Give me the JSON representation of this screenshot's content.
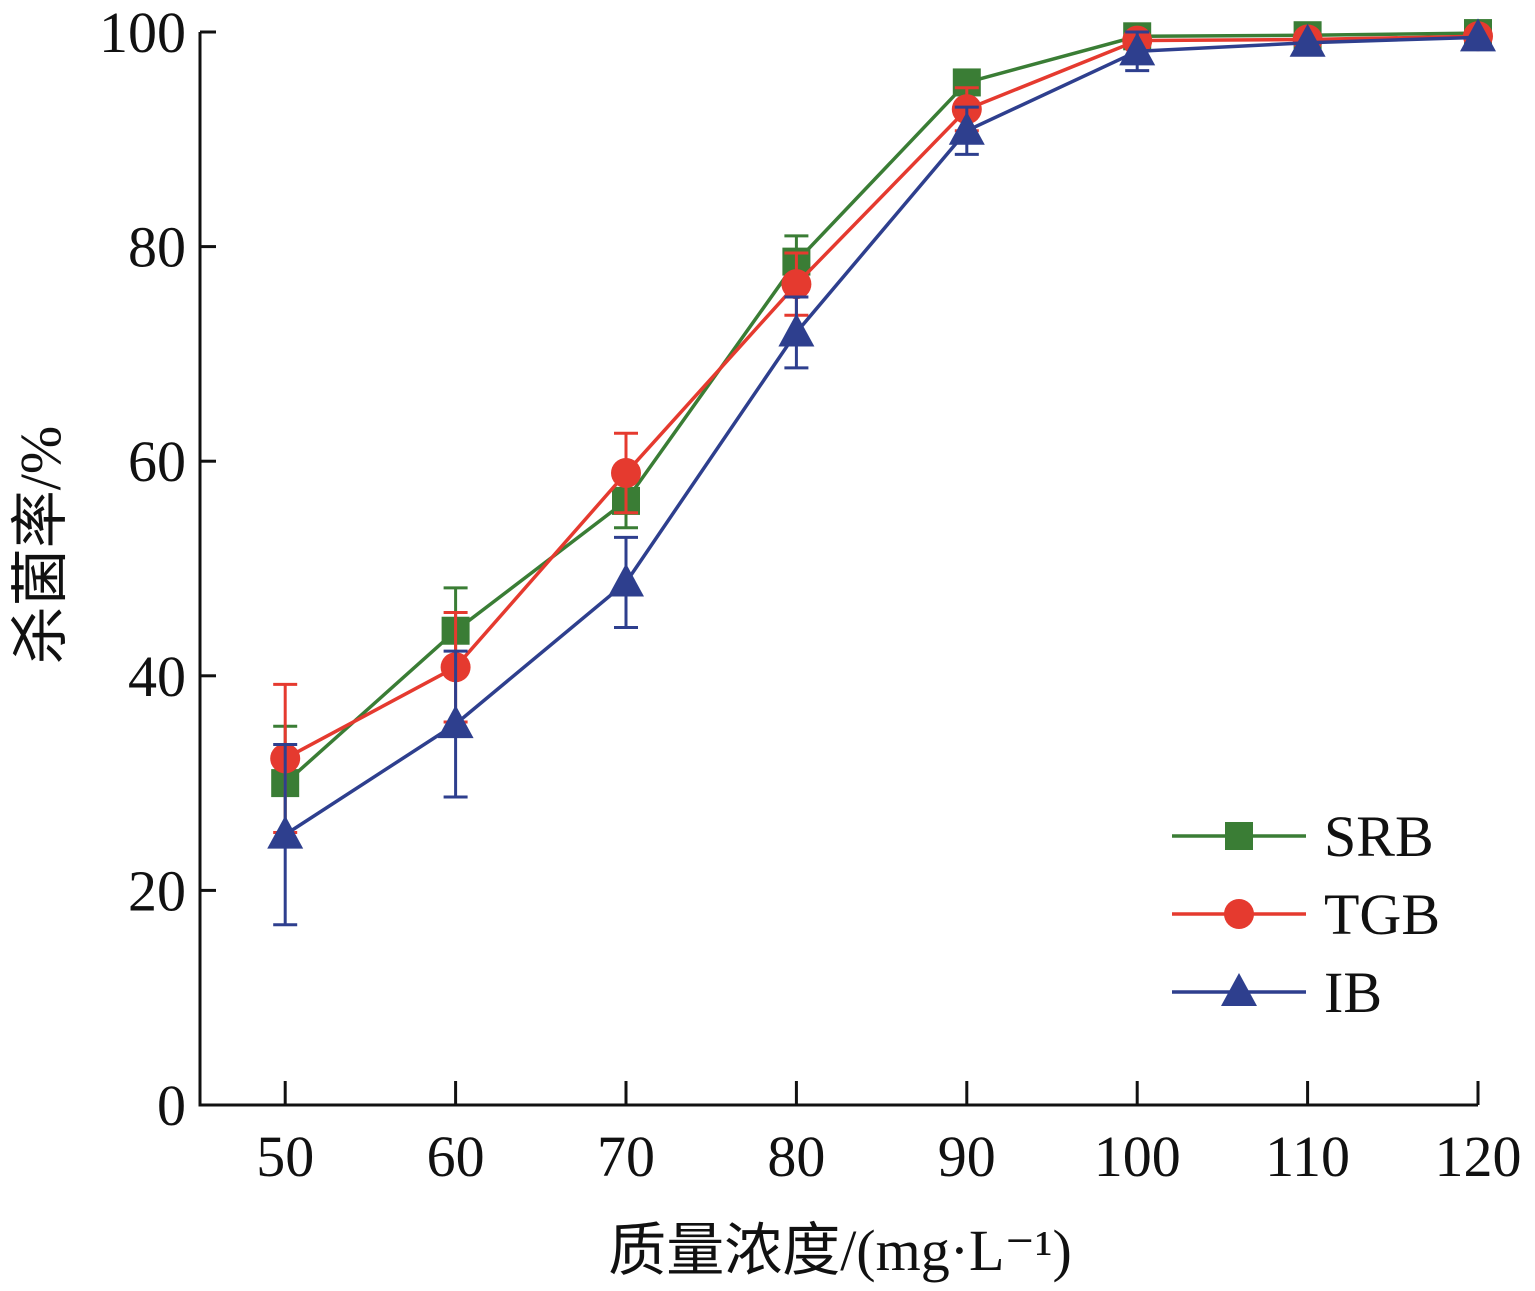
{
  "chart_data": {
    "type": "line",
    "title": "",
    "xlabel": "质量浓度/(mg·L⁻¹)",
    "ylabel": "杀菌率/%",
    "x": [
      50,
      60,
      70,
      80,
      90,
      100,
      110,
      120
    ],
    "xlim": [
      45,
      120
    ],
    "ylim": [
      0,
      100
    ],
    "xticks": [
      50,
      60,
      70,
      80,
      90,
      100,
      110,
      120
    ],
    "yticks": [
      0,
      20,
      40,
      60,
      80,
      100
    ],
    "grid": false,
    "legend_position": "bottom-right",
    "series": [
      {
        "name": "SRB",
        "color": "#3a7d35",
        "marker": "square",
        "values": [
          30.0,
          44.2,
          56.3,
          78.6,
          95.3,
          99.6,
          99.7,
          99.9
        ],
        "errors": [
          5.3,
          4.0,
          2.5,
          2.4,
          0.0,
          0.0,
          0.0,
          0.0
        ]
      },
      {
        "name": "TGB",
        "color": "#e53a2f",
        "marker": "circle",
        "values": [
          32.3,
          40.8,
          58.9,
          76.5,
          92.8,
          99.2,
          99.3,
          99.6
        ],
        "errors": [
          6.9,
          5.1,
          3.7,
          2.9,
          2.0,
          0.6,
          0.0,
          0.0
        ]
      },
      {
        "name": "IB",
        "color": "#2e3f8e",
        "marker": "triangle",
        "values": [
          25.2,
          35.5,
          48.7,
          72.0,
          90.8,
          98.2,
          99.0,
          99.5
        ],
        "errors": [
          8.4,
          6.8,
          4.2,
          3.3,
          2.2,
          1.8,
          0.0,
          0.0
        ]
      }
    ]
  }
}
